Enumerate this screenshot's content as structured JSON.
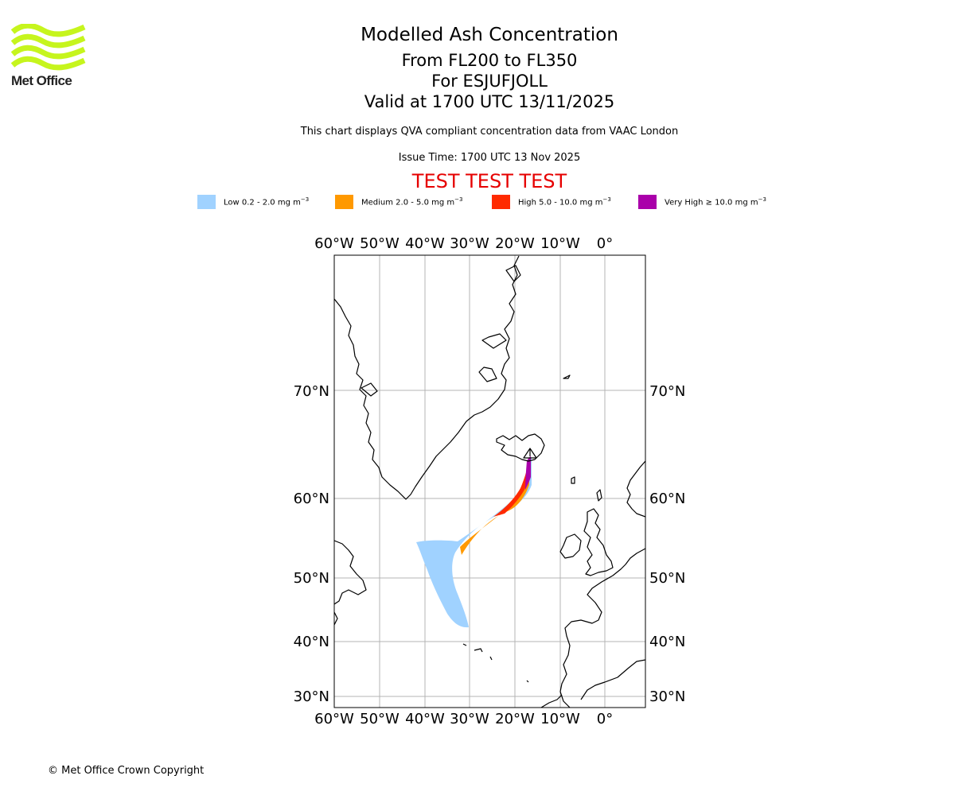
{
  "logo": {
    "text": "Met Office",
    "color": "#c6f51d"
  },
  "header": {
    "title": "Modelled Ash Concentration",
    "levels": "From FL200 to FL350",
    "volcano": "For ESJUFJOLL",
    "valid": "Valid at 1700 UTC 13/11/2025",
    "compliance": "This chart displays QVA compliant concentration data from VAAC London",
    "issue_time": "Issue Time: 1700 UTC 13 Nov 2025",
    "test_banner": "TEST TEST TEST"
  },
  "legend": [
    {
      "label": "Low 0.2 - 2.0 mg m",
      "sup": "−3",
      "color": "#a0d2ff"
    },
    {
      "label": "Medium 2.0 - 5.0 mg m",
      "sup": "−3",
      "color": "#ff9900"
    },
    {
      "label": "High 5.0 - 10.0 mg m",
      "sup": "−3",
      "color": "#ff2a00"
    },
    {
      "label": "Very High  ≥  10.0 mg m",
      "sup": "−3",
      "color": "#aa00aa"
    }
  ],
  "map": {
    "lon_ticks": [
      "60°W",
      "50°W",
      "40°W",
      "30°W",
      "20°W",
      "10°W",
      "0°"
    ],
    "lat_ticks": [
      "70°N",
      "60°N",
      "50°N",
      "40°N",
      "30°N"
    ],
    "colors": {
      "coast": "#000000",
      "grid": "#b4b4b4",
      "frame": "#000000"
    }
  },
  "footer": {
    "copyright": "© Met Office Crown Copyright"
  }
}
